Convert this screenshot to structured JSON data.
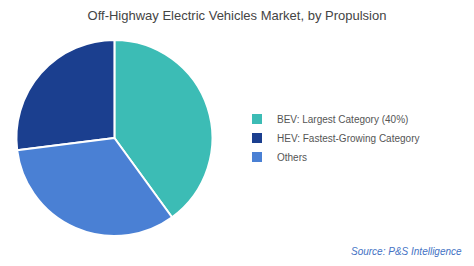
{
  "chart_data": {
    "type": "pie",
    "title": "Off-Highway Electric Vehicles Market, by Propulsion",
    "categories": [
      "BEV: Largest Category (40%)",
      "HEV: Fastest-Growing Category",
      "Others"
    ],
    "values": [
      40,
      27,
      33
    ],
    "colors": [
      "#3cbcb5",
      "#1b3f8f",
      "#4a80d4"
    ],
    "legend": "right",
    "annotations": [
      {
        "text": "Source: P&S Intelligence",
        "color": "#4472c4"
      }
    ]
  }
}
